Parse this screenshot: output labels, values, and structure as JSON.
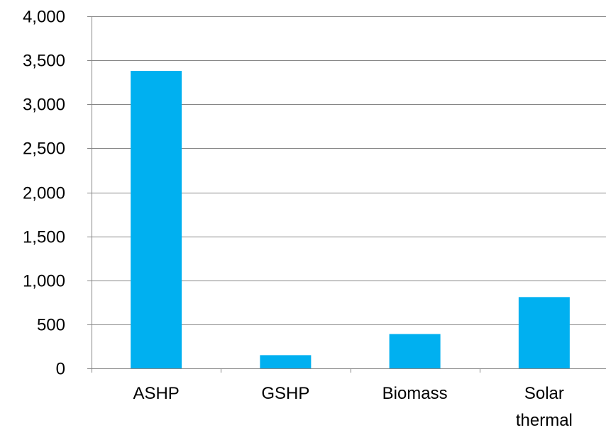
{
  "chart_data": {
    "type": "bar",
    "title": "",
    "xlabel": "",
    "ylabel": "",
    "categories": [
      "ASHP",
      "GSHP",
      "Biomass",
      "Solar thermal"
    ],
    "category_lines": [
      [
        "ASHP"
      ],
      [
        "GSHP"
      ],
      [
        "Biomass"
      ],
      [
        "Solar",
        "thermal"
      ]
    ],
    "series": [
      {
        "values": [
          3380,
          150,
          390,
          810
        ]
      }
    ],
    "ylim": [
      0,
      4000
    ],
    "y_ticks": [
      0,
      500,
      1000,
      1500,
      2000,
      2500,
      3000,
      3500,
      4000
    ],
    "y_tick_labels": [
      "0",
      "500",
      "1,000",
      "1,500",
      "2,000",
      "2,500",
      "3,000",
      "3,500",
      "4,000"
    ],
    "grid": true,
    "legend": "none",
    "colors": {
      "bar": "#00B0F0",
      "grid": "#868686",
      "axis": "#868686",
      "text": "#000000"
    }
  }
}
